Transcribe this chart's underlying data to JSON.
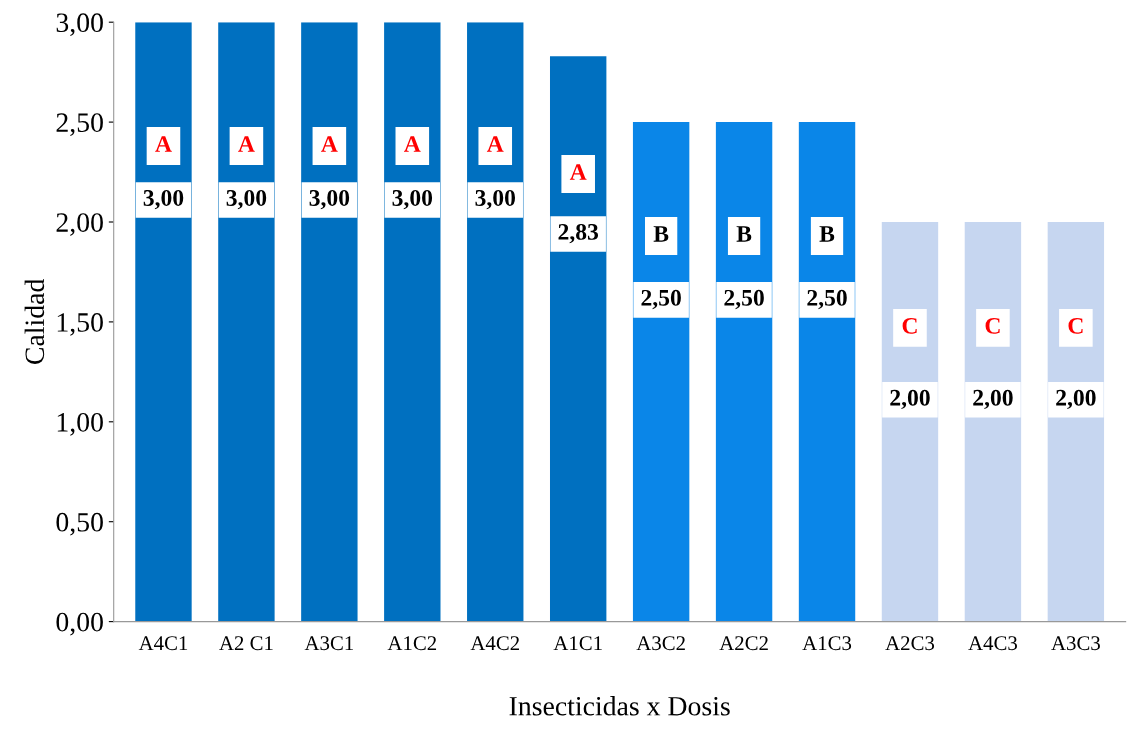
{
  "chart_data": {
    "type": "bar",
    "xlabel": "Insecticidas x Dosis",
    "ylabel": "Calidad",
    "categories": [
      "A4C1",
      "A2 C1",
      "A3C1",
      "A1C2",
      "A4C2",
      "A1C1",
      "A3C2",
      "A2C2",
      "A1C3",
      "A2C3",
      "A4C3",
      "A3C3"
    ],
    "values": [
      3.0,
      3.0,
      3.0,
      3.0,
      3.0,
      2.83,
      2.5,
      2.5,
      2.5,
      2.0,
      2.0,
      2.0
    ],
    "colors": [
      "#0070c0",
      "#0070c0",
      "#0070c0",
      "#0070c0",
      "#0070c0",
      "#0070c0",
      "#0a86e8",
      "#0a86e8",
      "#0a86e8",
      "#c6d6f0",
      "#c6d6f0",
      "#c6d6f0"
    ],
    "value_labels": [
      "3,00",
      "3,00",
      "3,00",
      "3,00",
      "3,00",
      "2,83",
      "2,50",
      "2,50",
      "2,50",
      "2,00",
      "2,00",
      "2,00"
    ],
    "ylim": [
      0,
      3
    ],
    "yticks": [
      {
        "value": 0,
        "label": "0,00"
      },
      {
        "value": 0.5,
        "label": "0,50"
      },
      {
        "value": 1.0,
        "label": "1,00"
      },
      {
        "value": 1.5,
        "label": "1,50"
      },
      {
        "value": 2.0,
        "label": "2,00"
      },
      {
        "value": 2.5,
        "label": "2,50"
      },
      {
        "value": 3.0,
        "label": "3,00"
      }
    ],
    "grid": false,
    "legend": false,
    "annotations": [
      {
        "text": "A",
        "x": "A4C1",
        "y": 2.38
      },
      {
        "text": "A",
        "x": "A2 C1",
        "y": 2.38
      },
      {
        "text": "A",
        "x": "A3C1",
        "y": 2.38
      },
      {
        "text": "A",
        "x": "A1C2",
        "y": 2.38
      },
      {
        "text": "A",
        "x": "A4C2",
        "y": 2.38
      },
      {
        "text": "A",
        "x": "A1C1",
        "y": 2.24
      },
      {
        "text": "B",
        "x": "A3C2",
        "y": 1.93
      },
      {
        "text": "B",
        "x": "A2C2",
        "y": 1.93
      },
      {
        "text": "B",
        "x": "A1C3",
        "y": 1.93
      },
      {
        "text": "C",
        "x": "A2C3",
        "y": 1.47
      },
      {
        "text": "C",
        "x": "A4C3",
        "y": 1.47
      },
      {
        "text": "C",
        "x": "A3C3",
        "y": 1.47
      }
    ]
  }
}
